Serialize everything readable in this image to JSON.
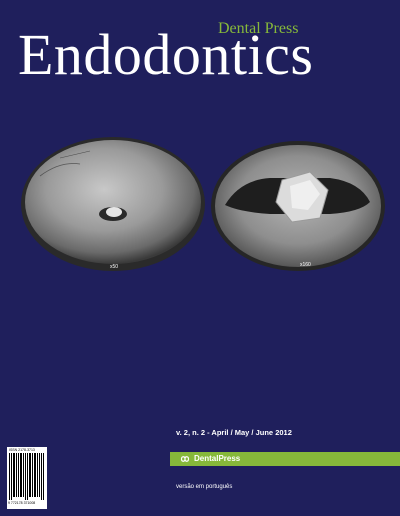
{
  "cover": {
    "brand": "Dental Press",
    "title": "Endodontics",
    "images": {
      "left_magnification": "x50",
      "right_magnification": "x160"
    },
    "issue_line": "v. 2, n. 2 - April / May / June 2012",
    "publisher_logo_text": "DentalPress",
    "version_note": "versão em português",
    "barcode": {
      "issn": "ISSN 2178-3713",
      "number": "9 772178 371008"
    }
  },
  "colors": {
    "background": "#1f1f5c",
    "accent_green": "#86b83a",
    "text": "#ffffff"
  }
}
